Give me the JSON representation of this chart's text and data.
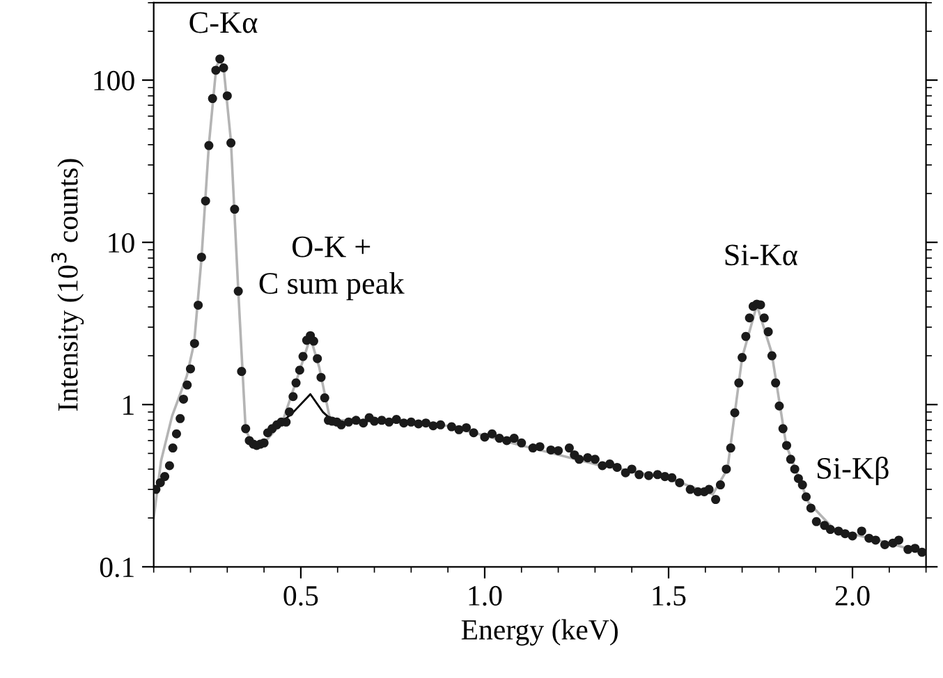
{
  "chart_data": {
    "type": "scatter",
    "xlabel": "Energy (keV)",
    "ylabel": "Intensity (10$^{3}$ counts)",
    "log": "y",
    "xlim": [
      0.1,
      2.2
    ],
    "ylim": [
      0.1,
      300
    ],
    "xticks": [
      0.5,
      {
        "value": 1,
        "label": "1.0"
      },
      1.5,
      {
        "value": 2,
        "label": "2.0"
      }
    ],
    "yticks": [
      0.1,
      1,
      10,
      100
    ],
    "grid": false,
    "legend": false,
    "series": [
      {
        "marker": "circle",
        "color": "#1a1a1a",
        "x": [
          0.106,
          0.118,
          0.13,
          0.143,
          0.152,
          0.162,
          0.172,
          0.181,
          0.191,
          0.2,
          0.211,
          0.221,
          0.23,
          0.241,
          0.25,
          0.26,
          0.269,
          0.28,
          0.29,
          0.3,
          0.31,
          0.32,
          0.33,
          0.339,
          0.35,
          0.36,
          0.371,
          0.38,
          0.39,
          0.4,
          0.41,
          0.422,
          0.435,
          0.447,
          0.46,
          0.469,
          0.479,
          0.487,
          0.497,
          0.506,
          0.516,
          0.526,
          0.535,
          0.545,
          0.555,
          0.565,
          0.575,
          0.585,
          0.598,
          0.61,
          0.63,
          0.65,
          0.67,
          0.686,
          0.7,
          0.72,
          0.74,
          0.76,
          0.78,
          0.8,
          0.82,
          0.84,
          0.86,
          0.88,
          0.91,
          0.93,
          0.95,
          0.97,
          1.0,
          1.02,
          1.04,
          1.06,
          1.08,
          1.1,
          1.131,
          1.15,
          1.18,
          1.2,
          1.23,
          1.244,
          1.257,
          1.28,
          1.3,
          1.32,
          1.34,
          1.36,
          1.383,
          1.4,
          1.42,
          1.446,
          1.47,
          1.49,
          1.509,
          1.53,
          1.559,
          1.58,
          1.597,
          1.61,
          1.628,
          1.641,
          1.657,
          1.669,
          1.68,
          1.691,
          1.7,
          1.71,
          1.72,
          1.73,
          1.74,
          1.75,
          1.76,
          1.771,
          1.781,
          1.791,
          1.801,
          1.811,
          1.821,
          1.832,
          1.843,
          1.853,
          1.864,
          1.874,
          1.887,
          1.902,
          1.924,
          1.94,
          1.962,
          1.98,
          2.0,
          2.025,
          2.045,
          2.063,
          2.088,
          2.11,
          2.126,
          2.151,
          2.17,
          2.189
        ],
        "values": [
          0.3,
          0.33,
          0.36,
          0.42,
          0.54,
          0.66,
          0.82,
          1.08,
          1.32,
          1.66,
          2.38,
          4.1,
          8.1,
          18,
          39.5,
          77,
          115,
          135,
          119,
          80,
          41,
          16,
          5.0,
          1.6,
          0.71,
          0.6,
          0.57,
          0.56,
          0.57,
          0.58,
          0.67,
          0.71,
          0.75,
          0.78,
          0.78,
          0.9,
          1.12,
          1.36,
          1.63,
          1.98,
          2.49,
          2.66,
          2.46,
          1.92,
          1.47,
          1.1,
          0.8,
          0.79,
          0.78,
          0.75,
          0.78,
          0.8,
          0.77,
          0.83,
          0.79,
          0.8,
          0.78,
          0.81,
          0.77,
          0.78,
          0.76,
          0.77,
          0.74,
          0.75,
          0.73,
          0.7,
          0.72,
          0.67,
          0.63,
          0.66,
          0.62,
          0.6,
          0.62,
          0.58,
          0.54,
          0.55,
          0.525,
          0.52,
          0.54,
          0.49,
          0.46,
          0.47,
          0.46,
          0.42,
          0.43,
          0.41,
          0.38,
          0.4,
          0.37,
          0.365,
          0.37,
          0.36,
          0.354,
          0.33,
          0.3,
          0.29,
          0.29,
          0.3,
          0.26,
          0.32,
          0.4,
          0.54,
          0.89,
          1.36,
          1.95,
          2.63,
          3.42,
          4.03,
          4.16,
          4.12,
          3.42,
          2.81,
          2.0,
          1.36,
          0.98,
          0.71,
          0.56,
          0.46,
          0.4,
          0.35,
          0.32,
          0.27,
          0.23,
          0.19,
          0.18,
          0.17,
          0.166,
          0.16,
          0.155,
          0.166,
          0.15,
          0.146,
          0.137,
          0.14,
          0.146,
          0.128,
          0.13,
          0.123
        ]
      },
      {
        "type": "line",
        "color": "#b4b4b4",
        "x": [
          0.1,
          0.12,
          0.15,
          0.19,
          0.21,
          0.23,
          0.25,
          0.27,
          0.28,
          0.29,
          0.31,
          0.33,
          0.35,
          0.37,
          0.4,
          0.45,
          0.5,
          0.526,
          0.55,
          0.58,
          0.7,
          0.9,
          1.1,
          1.3,
          1.5,
          1.62,
          1.66,
          1.7,
          1.74,
          1.78,
          1.82,
          1.88,
          1.95,
          2.1,
          2.2
        ],
        "values": [
          0.2,
          0.45,
          0.85,
          1.5,
          2.4,
          8,
          40,
          120,
          135,
          120,
          42,
          5,
          0.7,
          0.56,
          0.58,
          0.78,
          1.7,
          2.6,
          1.7,
          0.8,
          0.8,
          0.74,
          0.56,
          0.43,
          0.35,
          0.28,
          0.4,
          1.95,
          4.1,
          2.1,
          0.56,
          0.25,
          0.17,
          0.14,
          0.12
        ]
      },
      {
        "type": "line",
        "color": "#000000",
        "x": [
          0.44,
          0.48,
          0.526,
          0.56,
          0.59
        ],
        "values": [
          0.75,
          0.9,
          1.16,
          0.9,
          0.78
        ]
      }
    ],
    "annotations": [
      "C-Kα",
      "O-K +\nC sum peak",
      "Si-Kα",
      "Si-Kβ"
    ]
  }
}
